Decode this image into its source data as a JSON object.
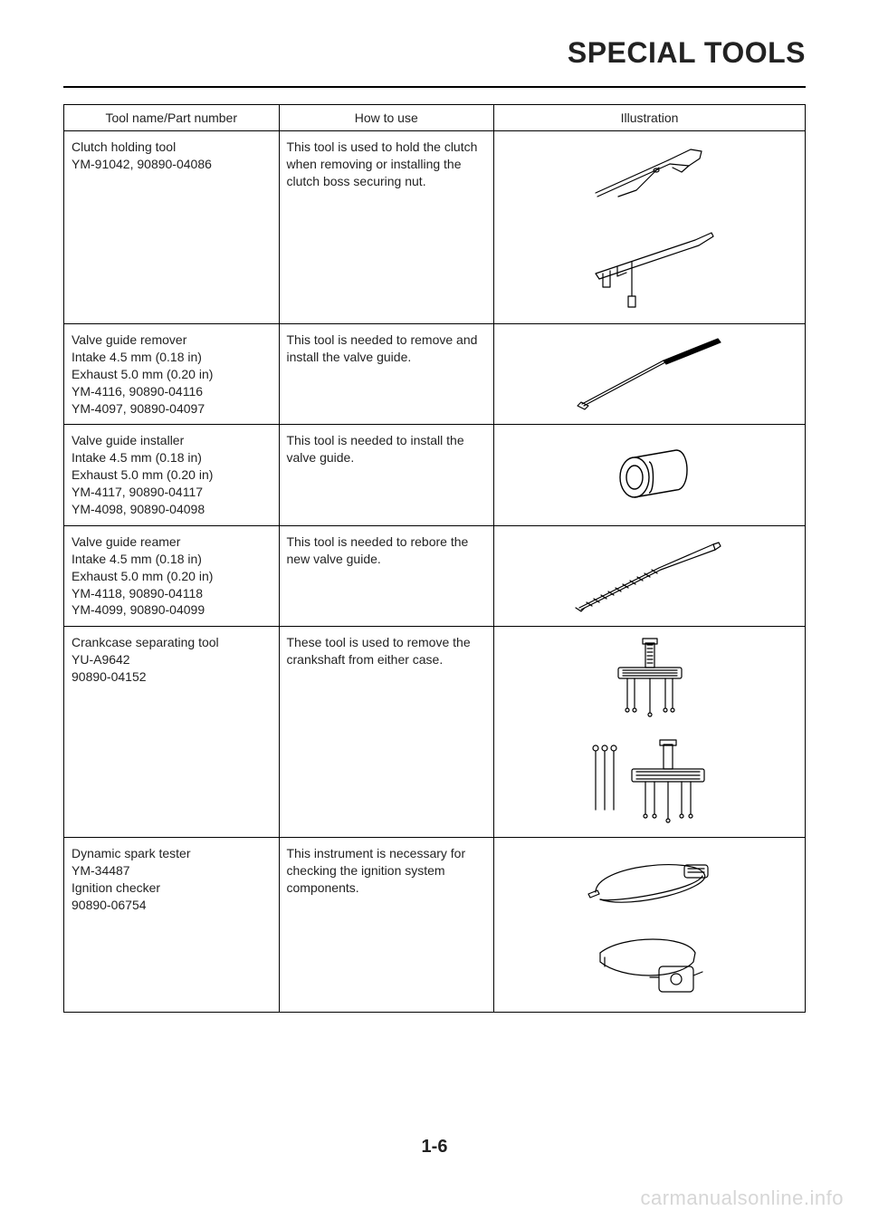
{
  "header": {
    "title": "SPECIAL TOOLS"
  },
  "table": {
    "columns": {
      "name": "Tool name/Part number",
      "use": "How to use",
      "illus": "Illustration"
    },
    "rows": [
      {
        "name": "Clutch holding tool\nYM-91042, 90890-04086",
        "use": "This tool is used to hold the clutch when removing or installing the clutch boss securing nut.",
        "icon": "clutch-holding-tool"
      },
      {
        "name": "Valve guide remover\nIntake 4.5 mm (0.18 in)\nExhaust 5.0 mm (0.20 in)\nYM-4116, 90890-04116\nYM-4097, 90890-04097",
        "use": "This tool is needed to remove and install the valve guide.",
        "icon": "valve-guide-remover"
      },
      {
        "name": "Valve guide installer\nIntake 4.5 mm (0.18 in)\nExhaust 5.0 mm (0.20 in)\nYM-4117, 90890-04117\nYM-4098, 90890-04098",
        "use": "This tool is needed to install the valve guide.",
        "icon": "valve-guide-installer"
      },
      {
        "name": "Valve guide reamer\nIntake 4.5 mm (0.18 in)\nExhaust 5.0 mm (0.20 in)\nYM-4118, 90890-04118\nYM-4099, 90890-04099",
        "use": "This tool is needed to rebore the new valve guide.",
        "icon": "valve-guide-reamer"
      },
      {
        "name": "Crankcase separating tool\nYU-A9642\n90890-04152",
        "use": "These tool is used to remove the crankshaft from either case.",
        "icon": "crankcase-separating-tool"
      },
      {
        "name": "Dynamic spark tester\nYM-34487\nIgnition checker\n90890-06754",
        "use": "This instrument is necessary for checking the ignition system components.",
        "icon": "dynamic-spark-tester"
      }
    ]
  },
  "svg": {
    "stroke": "#000000",
    "stroke_width": 1.2,
    "fill": "none",
    "hatch_stroke": "#000000",
    "hatch_width": 0.6
  },
  "footer": {
    "page_number": "1-6"
  },
  "watermark": {
    "text": "carmanualsonline.info"
  }
}
